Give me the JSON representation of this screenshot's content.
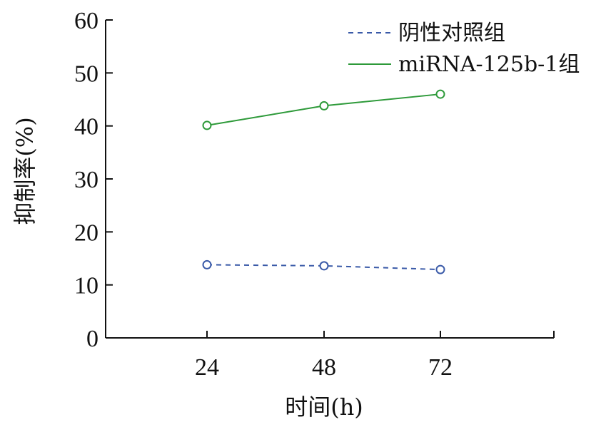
{
  "chart_data": {
    "type": "line",
    "categories": [
      "24",
      "48",
      "72"
    ],
    "xlabel": "时间(h)",
    "ylabel": "抑制率(%)",
    "ylim": [
      0,
      60
    ],
    "yticks": [
      "0",
      "10",
      "20",
      "30",
      "40",
      "50",
      "60"
    ],
    "grid": false,
    "legend_position": "top-right",
    "series": [
      {
        "name": "阴性对照组",
        "values": [
          13.8,
          13.6,
          12.9
        ],
        "color": "#3a5aa8",
        "style": "dashed"
      },
      {
        "name": "miRNA-125b-1组",
        "values": [
          40.1,
          43.8,
          46.0
        ],
        "color": "#2e9a3a",
        "style": "solid"
      }
    ]
  }
}
